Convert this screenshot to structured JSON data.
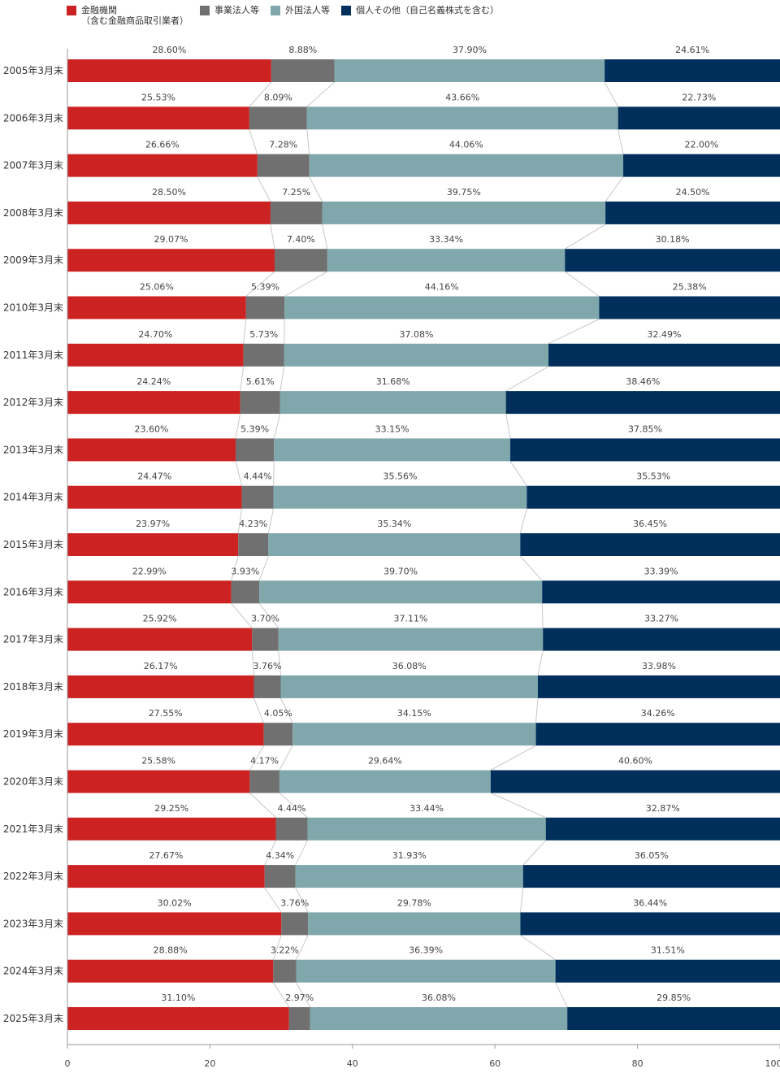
{
  "chart_data": {
    "type": "bar",
    "stacked": true,
    "orientation": "horizontal",
    "categories": [
      "2005年3月末",
      "2006年3月末",
      "2007年3月末",
      "2008年3月末",
      "2009年3月末",
      "2010年3月末",
      "2011年3月末",
      "2012年3月末",
      "2013年3月末",
      "2014年3月末",
      "2015年3月末",
      "2016年3月末",
      "2017年3月末",
      "2018年3月末",
      "2019年3月末",
      "2020年3月末",
      "2021年3月末",
      "2022年3月末",
      "2023年3月末",
      "2024年3月末",
      "2025年3月末"
    ],
    "series": [
      {
        "name": "金融機関\n（含む金融商品取引業者）",
        "color": "#cc2222",
        "values": [
          28.6,
          25.53,
          26.66,
          28.5,
          29.07,
          25.06,
          24.7,
          24.24,
          23.6,
          24.47,
          23.97,
          22.99,
          25.92,
          26.17,
          27.55,
          25.58,
          29.25,
          27.67,
          30.02,
          28.88,
          31.1
        ],
        "labels": [
          "28.60%",
          "25.53%",
          "26.66%",
          "28.50%",
          "29.07%",
          "25.06%",
          "24.70%",
          "24.24%",
          "23.60%",
          "24.47%",
          "23.97%",
          "22.99%",
          "25.92%",
          "26.17%",
          "27.55%",
          "25.58%",
          "29.25%",
          "27.67%",
          "30.02%",
          "28.88%",
          "31.10%"
        ]
      },
      {
        "name": "事業法人等",
        "color": "#707070",
        "values": [
          8.88,
          8.09,
          7.28,
          7.25,
          7.4,
          5.39,
          5.73,
          5.61,
          5.39,
          4.44,
          4.23,
          3.93,
          3.7,
          3.76,
          4.05,
          4.17,
          4.44,
          4.34,
          3.76,
          3.22,
          2.97
        ],
        "labels": [
          "8.88%",
          "8.09%",
          "7.28%",
          "7.25%",
          "7.40%",
          "5.39%",
          "5.73%",
          "5.61%",
          "5.39%",
          "4.44%",
          "4.23%",
          "3.93%",
          "3.70%",
          "3.76%",
          "4.05%",
          "4.17%",
          "4.44%",
          "4.34%",
          "3.76%",
          "3.22%",
          "2.97%"
        ]
      },
      {
        "name": "外国法人等",
        "color": "#80a8ac",
        "values": [
          37.9,
          43.66,
          44.06,
          39.75,
          33.34,
          44.16,
          37.08,
          31.68,
          33.15,
          35.56,
          35.34,
          39.7,
          37.11,
          36.08,
          34.15,
          29.64,
          33.44,
          31.93,
          29.78,
          36.39,
          36.08
        ],
        "labels": [
          "37.90%",
          "43.66%",
          "44.06%",
          "39.75%",
          "33.34%",
          "44.16%",
          "37.08%",
          "31.68%",
          "33.15%",
          "35.56%",
          "35.34%",
          "39.70%",
          "37.11%",
          "36.08%",
          "34.15%",
          "29.64%",
          "33.44%",
          "31.93%",
          "29.78%",
          "36.39%",
          "36.08%"
        ]
      },
      {
        "name": "個人その他（自己名義株式を含む）",
        "color": "#002f5c",
        "values": [
          24.61,
          22.73,
          22.0,
          24.5,
          30.18,
          25.38,
          32.49,
          38.46,
          37.85,
          35.53,
          36.45,
          33.39,
          33.27,
          33.98,
          34.26,
          40.6,
          32.87,
          36.05,
          36.44,
          31.51,
          29.85
        ],
        "labels": [
          "24.61%",
          "22.73%",
          "22.00%",
          "24.50%",
          "30.18%",
          "25.38%",
          "32.49%",
          "38.46%",
          "37.85%",
          "35.53%",
          "36.45%",
          "33.39%",
          "33.27%",
          "33.98%",
          "34.26%",
          "40.60%",
          "32.87%",
          "36.05%",
          "36.44%",
          "31.51%",
          "29.85%"
        ]
      }
    ],
    "xlim": [
      0,
      100
    ],
    "xticks": [
      0,
      20,
      40,
      60,
      80,
      100
    ],
    "xtick_labels": [
      "0",
      "20",
      "40",
      "60",
      "80",
      "100"
    ],
    "title": "",
    "xlabel": "",
    "ylabel": "",
    "legend_position": "top-left",
    "connector_lines": true,
    "grid": false
  }
}
